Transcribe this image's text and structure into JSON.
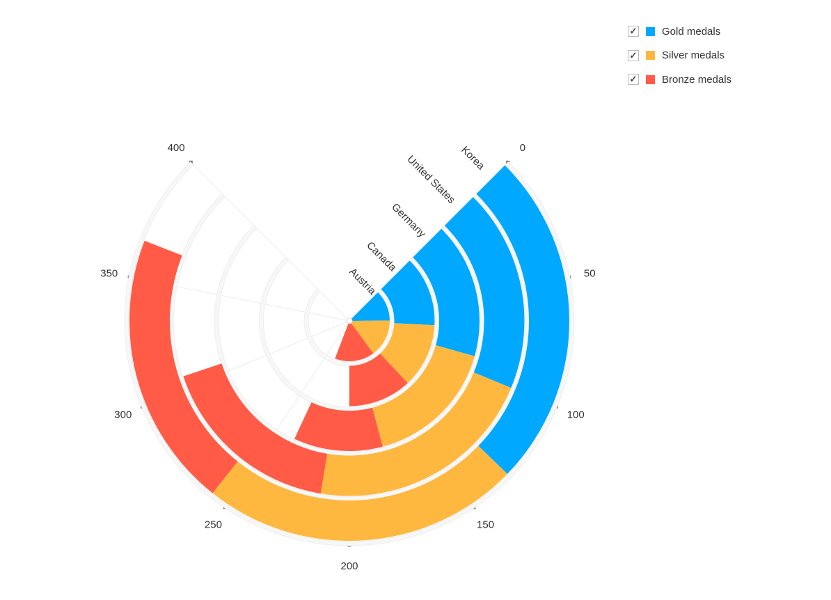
{
  "chart_data": {
    "type": "radial-bar-stacked",
    "categories": [
      "Austria",
      "Canada",
      "Germany",
      "United States",
      "Korea"
    ],
    "series": [
      {
        "name": "Gold medals",
        "color": "#00a8ff",
        "values": [
          66,
          71,
          90,
          100,
          132
        ]
      },
      {
        "name": "Silver medals",
        "color": "#ffb83f",
        "values": [
          80,
          65,
          88,
          114,
          125
        ]
      },
      {
        "name": "Bronze medals",
        "color": "#ff5b46",
        "values": [
          85,
          64,
          59,
          92,
          108
        ]
      }
    ],
    "value_axis": {
      "min": 0,
      "max": 400,
      "ticks": [
        0,
        50,
        100,
        150,
        200,
        250,
        300,
        350,
        400
      ],
      "start_angle_deg": 45,
      "end_angle_deg": 315
    },
    "grid": true,
    "legend": {
      "placement": "top-right",
      "checked": [
        true,
        true,
        true
      ]
    }
  }
}
